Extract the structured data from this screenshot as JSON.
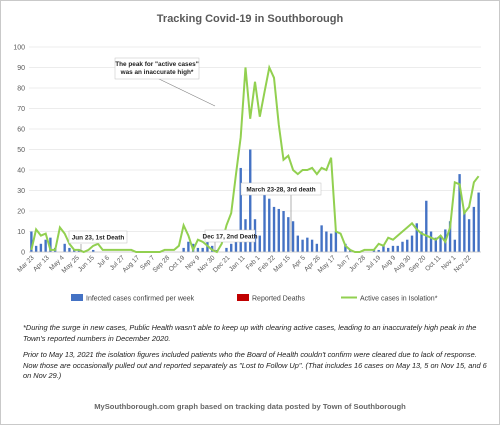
{
  "chart_data": {
    "type": "bar+line",
    "title": "Tracking Covid-19 in Southborough",
    "ylim": [
      0,
      100
    ],
    "y_ticks": [
      0,
      10,
      20,
      30,
      40,
      50,
      60,
      70,
      80,
      90,
      100
    ],
    "grid": "horizontal",
    "legend_position": "bottom",
    "x_tick_labels": [
      "Mar 23",
      "Apr 13",
      "May 4",
      "May 25",
      "Jun 15",
      "Jul 6",
      "Jul 27",
      "Aug 17",
      "Sep 7",
      "Sep 28",
      "Oct 19",
      "Nov 9",
      "Nov 30",
      "Dec 21",
      "Jan 11",
      "Feb 1",
      "Feb 22",
      "Mar 15",
      "Apr 5",
      "Apr 26",
      "May 17",
      "Jun 7",
      "Jun 28",
      "Jul 19",
      "Aug 9",
      "Aug 30",
      "Sep 20",
      "Oct 11",
      "Nov 1",
      "Nov 22"
    ],
    "series": [
      {
        "name": "Infected cases confirmed per week",
        "type": "bar",
        "color": "#4472c4",
        "values": [
          10,
          3,
          4,
          6,
          7,
          2,
          0,
          4,
          2,
          1,
          1,
          0,
          0,
          1,
          0,
          0,
          0,
          0,
          0,
          0,
          0,
          0,
          0,
          0,
          0,
          0,
          0,
          0,
          0,
          0,
          0,
          0,
          2,
          5,
          4,
          2,
          2,
          9,
          3,
          1,
          0,
          2,
          4,
          9,
          41,
          16,
          50,
          16,
          8,
          32,
          26,
          22,
          21,
          20,
          17,
          15,
          8,
          6,
          7,
          6,
          4,
          13,
          10,
          9,
          10,
          0,
          4,
          1,
          0,
          0,
          0,
          0,
          1,
          1,
          3,
          2,
          3,
          3,
          5,
          6,
          8,
          14,
          10,
          25,
          10,
          7,
          8,
          11,
          15,
          6,
          38,
          20,
          16,
          22,
          29
        ]
      },
      {
        "name": "Reported Deaths",
        "type": "bar",
        "color": "#c00000",
        "values": []
      },
      {
        "name": "Active cases in Isolation*",
        "type": "line",
        "color": "#92d050",
        "values": [
          1,
          11,
          8,
          9,
          1,
          1,
          12,
          9,
          4,
          1,
          1,
          0,
          1,
          3,
          4,
          1,
          1,
          1,
          1,
          1,
          1,
          1,
          0,
          0,
          0,
          0,
          0,
          0,
          1,
          1,
          1,
          3,
          13,
          8,
          1,
          6,
          5,
          3,
          1,
          0,
          4,
          13,
          19,
          38,
          56,
          90,
          65,
          83,
          66,
          78,
          90,
          85,
          62,
          45,
          47,
          40,
          38,
          40,
          40,
          41,
          38,
          41,
          40,
          46,
          10,
          9,
          3,
          1,
          0,
          0,
          1,
          1,
          1,
          4,
          3,
          7,
          6,
          8,
          10,
          12,
          14,
          11,
          9,
          8,
          7,
          6,
          8,
          5,
          12,
          34,
          33,
          19,
          22,
          34,
          37
        ]
      }
    ],
    "annotations": [
      {
        "text": "The peak for \"active cases\" was an inaccurate high*"
      },
      {
        "text": "Jun 23, 1st Death"
      },
      {
        "text": "Dec 17, 2nd Death"
      },
      {
        "text": "March  23-28, 3rd death"
      }
    ]
  },
  "notes": {
    "note_1": "*During the surge in new cases, Public Health wasn't able to keep up with clearing active cases, leading to an inaccurately high peak in the Town's reported  numbers in December 2020.",
    "note_2": "Prior to May 13, 2021 the isolation figures included patients who the Board of Health couldn't confirm were cleared due to lack of response. Now those are occasionally pulled out and reported separately as \"Lost to Follow Up\". (That includes 16 cases on May 13, 5 on Nov 15, and 6 on Nov 29.)"
  },
  "credit": "MySouthborough.com graph based on tracking data posted by Town of Southborough"
}
